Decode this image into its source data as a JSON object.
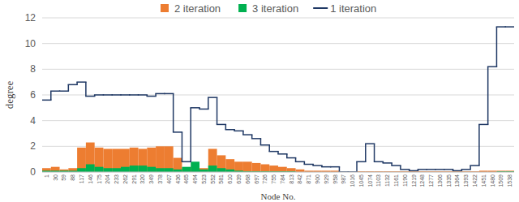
{
  "chart_data": {
    "type": "bar",
    "x_label": "Node No.",
    "y_label": "degree",
    "categories": [
      "1",
      "30",
      "59",
      "88",
      "117",
      "146",
      "175",
      "204",
      "233",
      "262",
      "291",
      "320",
      "349",
      "378",
      "407",
      "436",
      "465",
      "494",
      "523",
      "552",
      "581",
      "610",
      "639",
      "668",
      "697",
      "726",
      "755",
      "784",
      "813",
      "842",
      "871",
      "900",
      "929",
      "958",
      "987",
      "1016",
      "1045",
      "1074",
      "1103",
      "1132",
      "1161",
      "1190",
      "1219",
      "1248",
      "1277",
      "1306",
      "1335",
      "1364",
      "1393",
      "1422",
      "1451",
      "1480",
      "1509",
      "1538"
    ],
    "series": [
      {
        "name": "2 iteration",
        "type": "bar",
        "color": "#ed7d31",
        "values": [
          0.3,
          0.4,
          0.2,
          0.3,
          1.9,
          2.3,
          1.9,
          1.8,
          1.8,
          1.8,
          1.9,
          1.8,
          1.9,
          2.0,
          2.0,
          1.1,
          0.3,
          0.4,
          0.3,
          1.8,
          1.3,
          1.0,
          0.8,
          0.8,
          0.7,
          0.6,
          0.5,
          0.4,
          0.3,
          0.2,
          0.1,
          0.1,
          0.1,
          0.1,
          0,
          0,
          0.05,
          0.05,
          0.05,
          0.05,
          0.05,
          0.05,
          0.05,
          0.05,
          0.05,
          0.05,
          0.05,
          0.05,
          0.05,
          0.05,
          0.1,
          0.1,
          0.1,
          0.1
        ]
      },
      {
        "name": "3 iteration",
        "type": "bar",
        "color": "#00b050",
        "values": [
          0.1,
          0.1,
          0.1,
          0.1,
          0.3,
          0.6,
          0.4,
          0.3,
          0.3,
          0.4,
          0.5,
          0.5,
          0.4,
          0.3,
          0.3,
          0.2,
          0.4,
          0.8,
          0.2,
          0.5,
          0.3,
          0.2,
          0.1,
          0.05,
          0.05,
          0.05,
          0.05,
          0.05,
          0.05,
          0,
          0,
          0,
          0,
          0,
          0,
          0,
          0,
          0,
          0,
          0,
          0,
          0,
          0,
          0,
          0,
          0,
          0,
          0,
          0,
          0,
          0,
          0,
          0.05,
          0.05
        ]
      },
      {
        "name": "1 iteration",
        "type": "line",
        "line_style": "step",
        "color": "#1f3864",
        "values": [
          5.6,
          6.3,
          6.3,
          6.8,
          7.0,
          5.9,
          6.0,
          6.0,
          6.0,
          6.0,
          6.0,
          6.0,
          5.9,
          6.1,
          6.1,
          3.1,
          0.8,
          5.0,
          4.9,
          5.8,
          3.7,
          3.3,
          3.2,
          2.9,
          2.6,
          2.1,
          1.6,
          1.4,
          1.1,
          0.8,
          0.6,
          0.5,
          0.4,
          0.4,
          0,
          0,
          0.8,
          2.2,
          0.8,
          0.7,
          0.5,
          0.2,
          0.1,
          0.2,
          0.2,
          0.2,
          0.2,
          0.1,
          0.2,
          0.5,
          3.7,
          8.2,
          11.3,
          11.3
        ]
      }
    ],
    "ylim": [
      0,
      12
    ],
    "yticks": [
      0,
      2,
      4,
      6,
      8,
      10,
      12
    ],
    "grid": true,
    "legend": "top"
  }
}
